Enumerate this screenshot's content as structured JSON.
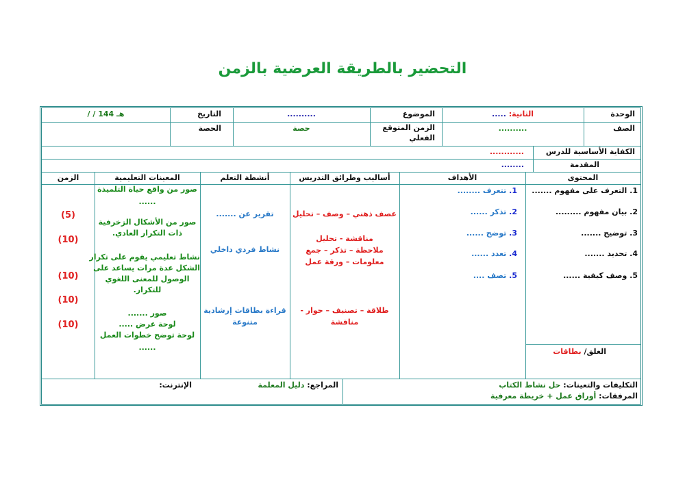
{
  "title": "التحضير بالطريقة العرضية بالزمن",
  "header": {
    "unit_label": "الوحدة",
    "unit_value": "الثانية:",
    "unit_dots": ".....",
    "topic_label": "الموضوع",
    "topic_value": "..........",
    "date_label": "التاريخ",
    "date_value": "/   /   144 هـ",
    "grade_label": "الصف",
    "grade_value": "..........",
    "expected_time_label": "الزمن المتوقع الفعلي",
    "expected_time_value": "حصة",
    "period_label": "الحصة",
    "competency_label": "الكفاية الأساسية للدرس",
    "competency_value": "............",
    "intro_label": "المقدمة",
    "intro_value": "........"
  },
  "columns": [
    "المحتوى",
    "الأهداف",
    "أساليب وطرائق التدريس",
    "أنشطة التعلم",
    "المعينات التعليمية",
    "الزمن"
  ],
  "content": [
    "1.  التعرف على مفهوم .......",
    "2.  بيان مفهوم .........",
    "3.  توضيح .......",
    "4.  تحديد .......",
    "5.  وصف كيفية ......"
  ],
  "closure_label": "الغلق/",
  "closure_value": "بطاقات",
  "objectives": [
    {
      "n": "1.",
      "t": "تتعرف ........"
    },
    {
      "n": "2.",
      "t": "تذكر ......"
    },
    {
      "n": "3.",
      "t": "توضح ......"
    },
    {
      "n": "4.",
      "t": "تعدد ......"
    },
    {
      "n": "5.",
      "t": "تصف ...."
    }
  ],
  "methods": [
    "عصف ذهني – وصف – تحليل",
    "مناقشة - تحليل",
    "ملاحظة – تذكر – جمع",
    "معلومات – ورقة عمل",
    "طلاقة – تصنيف – حوار -",
    "مناقشة"
  ],
  "activities": [
    "تقرير عن .......",
    "نشاط فردي داخلي",
    "قراءة بطاقات إرشادية",
    "متنوعة"
  ],
  "aids": [
    "صور من واقع حياة التلميذة",
    "......",
    "صور من الأشكال الزخرفية",
    "ذات التكرار العادي.",
    "نشاط تعليمي يقوم على تكرار",
    "الشكل عدة مرات يساعد على",
    "الوصول  للمعنى اللغوي",
    "للتكرار.",
    "صور .......",
    "لوحة عرض .....",
    "لوحة توضح خطوات العمل",
    "......"
  ],
  "times": [
    "(5)",
    "(10)",
    "(10)",
    "(10)",
    "(10)"
  ],
  "footer": {
    "homework_label": "التكليفات والتعينات:",
    "homework_value": "حل نشاط الكتاب",
    "attachments_label": "المرفقات:",
    "attachments_value": "أوراق عمل + خريطة معرفية",
    "references_label": "المراجع:",
    "references_value": "دليل المعلمة",
    "internet_label": "الإنترنت:"
  }
}
